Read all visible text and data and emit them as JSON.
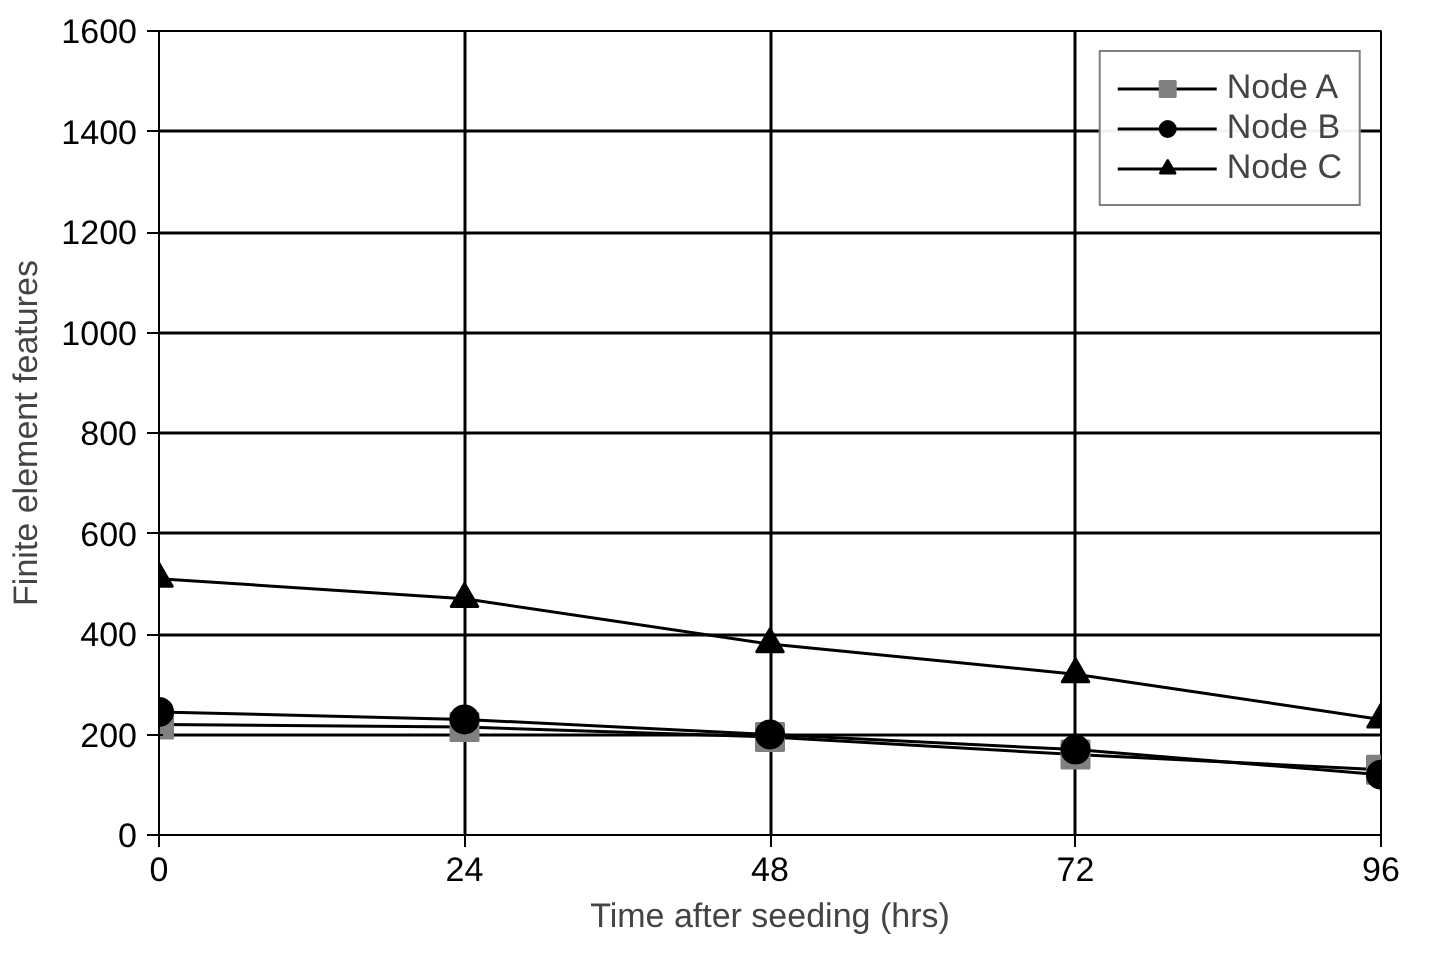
{
  "chart_data": {
    "type": "line",
    "xlabel": "Time after seeding (hrs)",
    "ylabel": "Finite element features",
    "x": [
      0,
      24,
      48,
      72,
      96
    ],
    "series": [
      {
        "name": "Node A",
        "color": "#808080",
        "marker": "square",
        "values": [
          220,
          215,
          195,
          160,
          130
        ]
      },
      {
        "name": "Node B",
        "color": "#000000",
        "marker": "circle",
        "values": [
          245,
          230,
          200,
          170,
          120
        ]
      },
      {
        "name": "Node C",
        "color": "#000000",
        "marker": "triangle",
        "values": [
          510,
          470,
          380,
          320,
          230
        ]
      }
    ],
    "xlim": [
      0,
      96
    ],
    "xticks": [
      0,
      24,
      48,
      72,
      96
    ],
    "ylim": [
      0,
      1600
    ],
    "yticks": [
      0,
      200,
      400,
      600,
      800,
      1000,
      1200,
      1400,
      1600
    ],
    "grid": true,
    "legend": "top right",
    "line_style": "solid"
  }
}
